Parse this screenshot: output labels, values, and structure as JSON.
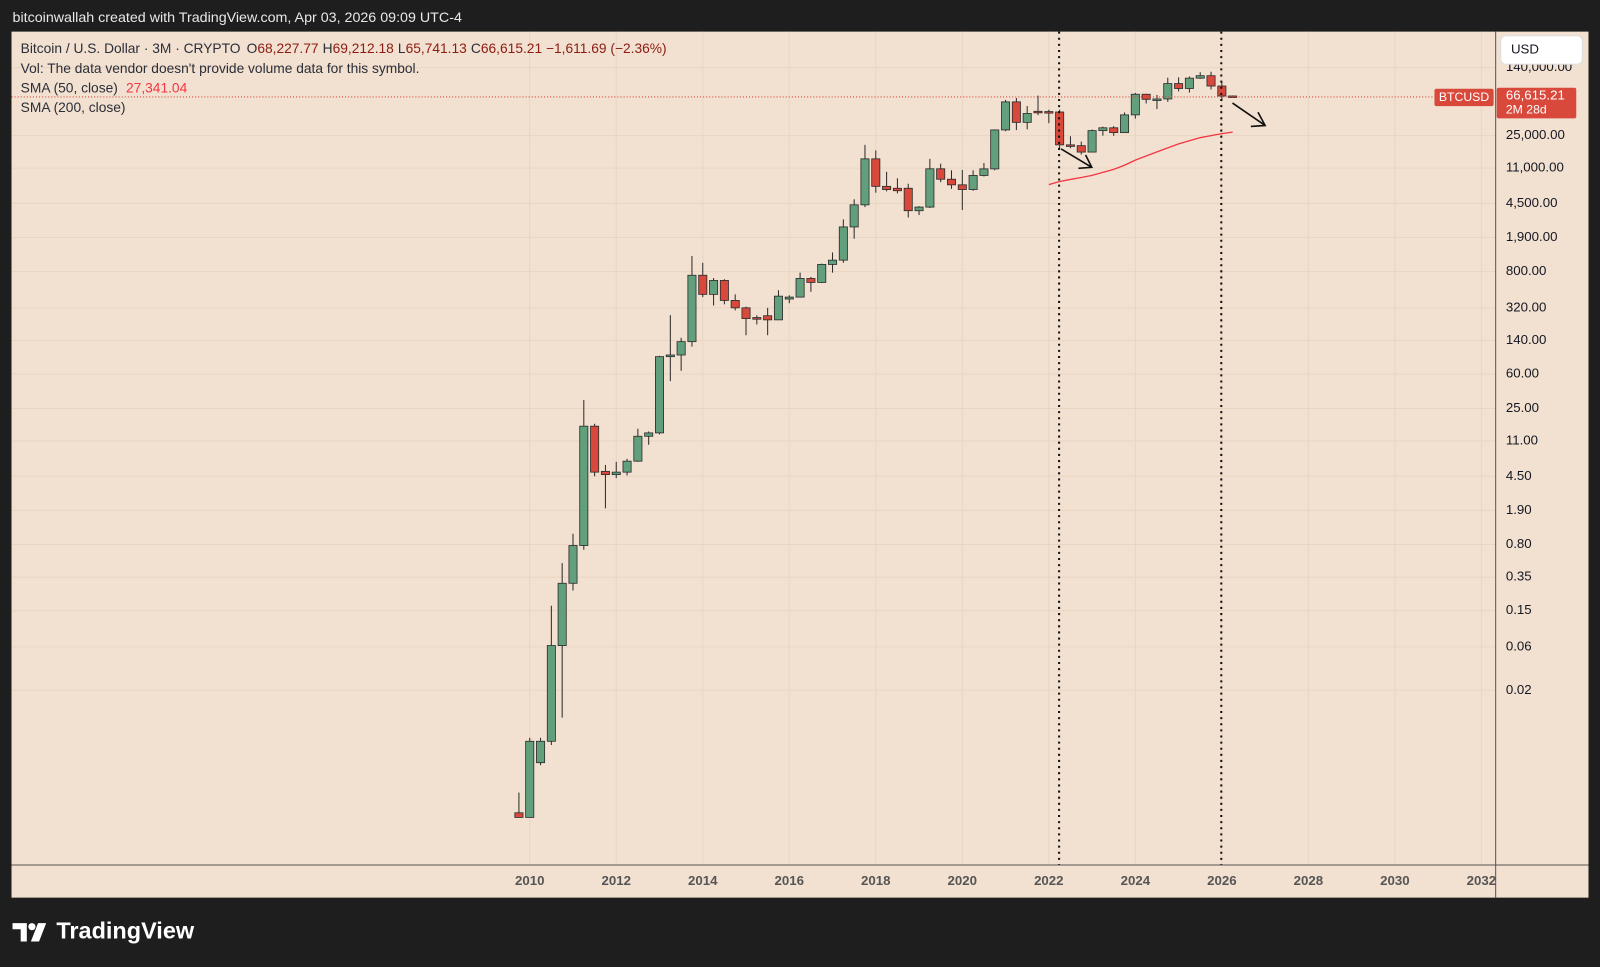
{
  "credit": "bitcoinwallah created with TradingView.com, Apr 03, 2026 09:09 UTC-4",
  "logo": "TradingView",
  "currency_button": "USD",
  "chart_data": {
    "type": "candlestick",
    "title": "Bitcoin / U.S. Dollar · 3M · CRYPTO",
    "ohlc_legend": [
      {
        "key": "O",
        "value": "68,227.77"
      },
      {
        "key": "H",
        "value": "69,212.18"
      },
      {
        "key": "L",
        "value": "65,741.13"
      },
      {
        "key": "C",
        "value": "66,615.21"
      }
    ],
    "change": "−1,611.69 (−2.36%)",
    "volume_note": "Vol: The data vendor doesn't provide volume data for this symbol.",
    "log_scale": true,
    "grid": true,
    "up_color": "#62a07d",
    "down_color": "#d9493b",
    "x": [
      2009.75,
      2010,
      2010.25,
      2010.5,
      2010.75,
      2011,
      2011.25,
      2011.5,
      2011.75,
      2012,
      2012.25,
      2012.5,
      2012.75,
      2013,
      2013.25,
      2013.5,
      2013.75,
      2014,
      2014.25,
      2014.5,
      2014.75,
      2015,
      2015.25,
      2015.5,
      2015.75,
      2016,
      2016.25,
      2016.5,
      2016.75,
      2017,
      2017.25,
      2017.5,
      2017.75,
      2018,
      2018.25,
      2018.5,
      2018.75,
      2019,
      2019.25,
      2019.5,
      2019.75,
      2020,
      2020.25,
      2020.5,
      2020.75,
      2021,
      2021.25,
      2021.5,
      2021.75,
      2022,
      2022.25,
      2022.5,
      2022.75,
      2023,
      2023.25,
      2023.5,
      2023.75,
      2024,
      2024.25,
      2024.5,
      2024.75,
      2025,
      2025.25,
      2025.5,
      2025.75,
      2026,
      2026.25
    ],
    "open": [
      0.0009,
      0.0008,
      0.0032,
      0.0055,
      0.062,
      0.3,
      0.78,
      16,
      5.1,
      4.7,
      5,
      6.6,
      12.4,
      13.5,
      93,
      97,
      136,
      730,
      450,
      640,
      386,
      320,
      250,
      262,
      236,
      400,
      420,
      673,
      609,
      960,
      1070,
      2480,
      4340,
      13900,
      6930,
      6600,
      6600,
      3740,
      4100,
      10800,
      8300,
      7200,
      6400,
      9130,
      10780,
      28900,
      58800,
      35000,
      46300,
      46000,
      45500,
      19800,
      19400,
      16500,
      28400,
      30500,
      27000,
      42300,
      71300,
      62700,
      63300,
      93400,
      82500,
      107200,
      114000,
      87800,
      68227.77
    ],
    "high": [
      0.0015,
      0.006,
      0.006,
      0.17,
      0.5,
      1.05,
      31,
      17,
      6,
      6.5,
      7,
      15,
      14,
      95,
      266,
      150,
      1190,
      1000,
      680,
      660,
      450,
      330,
      265,
      320,
      500,
      440,
      780,
      700,
      980,
      1300,
      3000,
      5000,
      19800,
      17200,
      10000,
      8500,
      7400,
      4200,
      13900,
      12300,
      10400,
      10500,
      10400,
      12500,
      29300,
      61800,
      64800,
      52900,
      69000,
      48200,
      48200,
      24600,
      21500,
      29200,
      31400,
      31800,
      45000,
      73800,
      72000,
      70000,
      108300,
      109400,
      111900,
      124400,
      126200,
      97900,
      69212.18
    ],
    "low": [
      0.0008,
      0.0008,
      0.003,
      0.005,
      0.01,
      0.25,
      0.7,
      4.5,
      2,
      4.3,
      4.6,
      6.5,
      10,
      13,
      50,
      65,
      120,
      420,
      340,
      350,
      300,
      160,
      210,
      160,
      235,
      360,
      415,
      480,
      600,
      780,
      1000,
      1840,
      4100,
      5900,
      6100,
      5800,
      3150,
      3350,
      4000,
      7700,
      6500,
      3800,
      6200,
      8900,
      10400,
      28000,
      28800,
      29300,
      42000,
      34300,
      17600,
      18200,
      15500,
      16500,
      25000,
      24900,
      26900,
      38500,
      56500,
      49000,
      58900,
      76600,
      74400,
      105200,
      80500,
      60000,
      65741.13
    ],
    "close": [
      0.0008,
      0.0055,
      0.0055,
      0.062,
      0.3,
      0.78,
      16,
      5,
      4.7,
      5,
      6.6,
      12.4,
      13.5,
      93,
      97,
      136,
      730,
      450,
      640,
      386,
      320,
      244,
      240,
      236,
      430,
      420,
      673,
      609,
      960,
      1070,
      2480,
      4340,
      13900,
      6930,
      6390,
      6200,
      3740,
      4100,
      10800,
      8300,
      7200,
      6400,
      9130,
      10780,
      28900,
      58800,
      35000,
      43800,
      45500,
      45500,
      19800,
      19400,
      16500,
      28400,
      30500,
      27000,
      42300,
      71300,
      62700,
      63300,
      93400,
      82500,
      107200,
      114000,
      87800,
      68200,
      66615.21
    ],
    "indicators": [
      {
        "name": "SMA (50, close)",
        "color": "#f23645",
        "value_label": "27,341.04",
        "x": [
          2022,
          2022.25,
          2022.5,
          2022.75,
          2023,
          2023.25,
          2023.5,
          2023.75,
          2024,
          2024.25,
          2024.5,
          2024.75,
          2025,
          2025.25,
          2025.5,
          2025.75,
          2026,
          2026.25
        ],
        "values": [
          7240,
          7830,
          8250,
          8670,
          9140,
          9870,
          10660,
          11830,
          13460,
          14930,
          16560,
          18330,
          20330,
          21980,
          23760,
          25000,
          26310,
          27341.04
        ]
      },
      {
        "name": "SMA (200, close)"
      }
    ],
    "price_tag": {
      "symbol": "BTCUSD",
      "value_label": "66,615.21",
      "countdown": "2M 28d"
    },
    "xlim": [
      1998.02,
      2032.33
    ],
    "xticks": [
      2010,
      2012,
      2014,
      2016,
      2018,
      2020,
      2022,
      2024,
      2026,
      2028,
      2030,
      2032
    ],
    "ylim": [
      0.00024,
      348000
    ],
    "yticks": [
      {
        "value": 140000,
        "label": "140,000.00"
      },
      {
        "value": 25000,
        "label": "25,000.00"
      },
      {
        "value": 11000,
        "label": "11,000.00"
      },
      {
        "value": 4500,
        "label": "4,500.00"
      },
      {
        "value": 1900,
        "label": "1,900.00"
      },
      {
        "value": 800,
        "label": "800.00"
      },
      {
        "value": 320,
        "label": "320.00"
      },
      {
        "value": 140,
        "label": "140.00"
      },
      {
        "value": 60,
        "label": "60.00"
      },
      {
        "value": 25,
        "label": "25.00"
      },
      {
        "value": 11,
        "label": "11.00"
      },
      {
        "value": 4.5,
        "label": "4.50"
      },
      {
        "value": 1.9,
        "label": "1.90"
      },
      {
        "value": 0.8,
        "label": "0.80"
      },
      {
        "value": 0.35,
        "label": "0.35"
      },
      {
        "value": 0.15,
        "label": "0.15"
      },
      {
        "value": 0.06,
        "label": "0.06"
      },
      {
        "value": 0.02,
        "label": "0.02"
      }
    ]
  }
}
